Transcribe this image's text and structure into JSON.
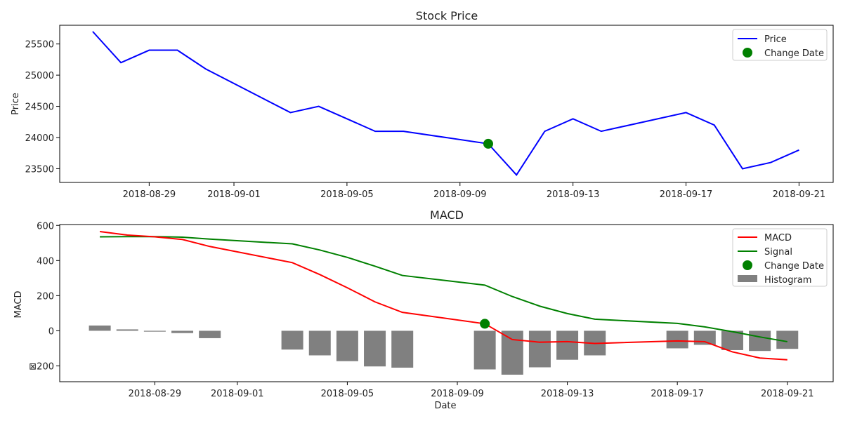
{
  "chart_data": [
    {
      "type": "line",
      "title": "Stock Price",
      "xlabel": "",
      "ylabel": "Price",
      "x_ticks": [
        "2018-08-29",
        "2018-09-01",
        "2018-09-05",
        "2018-09-09",
        "2018-09-13",
        "2018-09-17",
        "2018-09-21"
      ],
      "y_ticks": [
        23500,
        24000,
        24500,
        25000,
        25500
      ],
      "ylim": [
        23280,
        25800
      ],
      "xlim": [
        "2018-08-25T20:00",
        "2018-09-22T05:00"
      ],
      "legend_position": "upper right",
      "colors": {
        "price": "#0000ff",
        "change": "#008000"
      },
      "series": [
        {
          "name": "Price",
          "x": [
            "2018-08-27",
            "2018-08-28",
            "2018-08-29",
            "2018-08-30",
            "2018-08-31",
            "2018-09-03",
            "2018-09-04",
            "2018-09-06",
            "2018-09-07",
            "2018-09-10",
            "2018-09-11",
            "2018-09-12",
            "2018-09-13",
            "2018-09-14",
            "2018-09-17",
            "2018-09-18",
            "2018-09-19",
            "2018-09-20",
            "2018-09-21"
          ],
          "values": [
            25700,
            25200,
            25400,
            25400,
            25100,
            24400,
            24500,
            24100,
            24100,
            23900,
            23400,
            24100,
            24300,
            24100,
            24400,
            24200,
            23500,
            23600,
            23800
          ]
        }
      ],
      "markers": [
        {
          "name": "Change Date",
          "x": "2018-09-10",
          "y": 23900
        }
      ]
    },
    {
      "type": "line",
      "title": "MACD",
      "xlabel": "Date",
      "ylabel": "MACD",
      "x_ticks": [
        "2018-08-29",
        "2018-09-01",
        "2018-09-05",
        "2018-09-09",
        "2018-09-13",
        "2018-09-17",
        "2018-09-21"
      ],
      "y_ticks": [
        600,
        400,
        200,
        0,
        -200
      ],
      "y_tick_labels": [
        "600",
        "400",
        "200",
        "0",
        "⊠200"
      ],
      "ylim": [
        -290,
        605
      ],
      "xlim": [
        "2018-08-25T13:00",
        "2018-09-22T16:00"
      ],
      "legend_position": "upper right",
      "colors": {
        "macd": "#ff0000",
        "signal": "#008000",
        "histogram": "#808080",
        "change": "#008000"
      },
      "x": [
        "2018-08-27",
        "2018-08-28",
        "2018-08-29",
        "2018-08-30",
        "2018-08-31",
        "2018-09-03",
        "2018-09-04",
        "2018-09-05",
        "2018-09-06",
        "2018-09-07",
        "2018-09-10",
        "2018-09-11",
        "2018-09-12",
        "2018-09-13",
        "2018-09-14",
        "2018-09-17",
        "2018-09-18",
        "2018-09-19",
        "2018-09-20",
        "2018-09-21"
      ],
      "series": [
        {
          "name": "MACD",
          "values": [
            565,
            545,
            535,
            520,
            480,
            388,
            320,
            245,
            165,
            105,
            40,
            -50,
            -65,
            -62,
            -72,
            -58,
            -62,
            -120,
            -155,
            -165
          ]
        },
        {
          "name": "Signal",
          "values": [
            535,
            536,
            536,
            533,
            522,
            495,
            460,
            418,
            368,
            315,
            260,
            195,
            140,
            98,
            66,
            42,
            22,
            -5,
            -35,
            -62
          ]
        },
        {
          "name": "Histogram",
          "values": [
            30,
            8,
            -5,
            -13,
            -42,
            -107,
            -140,
            -173,
            -203,
            -210,
            -220,
            -250,
            -208,
            -165,
            -140,
            -100,
            -80,
            -110,
            -115,
            -103
          ]
        }
      ],
      "markers": [
        {
          "name": "Change Date",
          "x": "2018-09-10",
          "y": 40
        }
      ]
    }
  ]
}
